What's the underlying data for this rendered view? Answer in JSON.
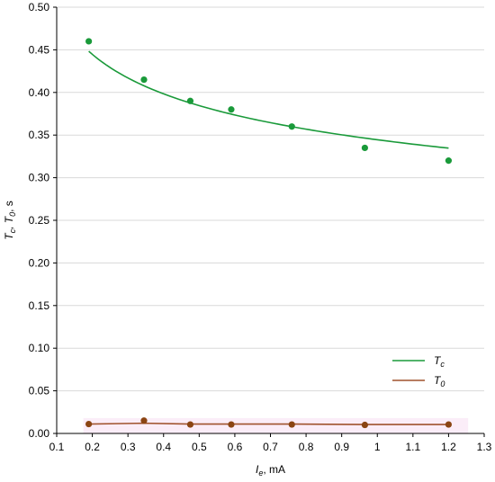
{
  "chart_data": {
    "type": "scatter",
    "x_axis": {
      "label_main": "I",
      "label_sub": "e",
      "label_unit": ", mA",
      "range": [
        0.1,
        1.3
      ],
      "ticks": [
        "0.1",
        "0.2",
        "0.3",
        "0.4",
        "0.5",
        "0.6",
        "0.7",
        "0.8",
        "0.9",
        "1",
        "1.1",
        "1.2",
        "1.3"
      ],
      "tick_values": [
        0.1,
        0.2,
        0.3,
        0.4,
        0.5,
        0.6,
        0.7,
        0.8,
        0.9,
        1.0,
        1.1,
        1.2,
        1.3
      ]
    },
    "y_axis": {
      "label_parts": [
        "T",
        "c",
        ", T",
        "0",
        ", s"
      ],
      "range": [
        0.0,
        0.5
      ],
      "ticks": [
        "0.00",
        "0.05",
        "0.10",
        "0.15",
        "0.20",
        "0.25",
        "0.30",
        "0.35",
        "0.40",
        "0.45",
        "0.50"
      ],
      "tick_values": [
        0.0,
        0.05,
        0.1,
        0.15,
        0.2,
        0.25,
        0.3,
        0.35,
        0.4,
        0.45,
        0.5
      ]
    },
    "grid": "horizontal",
    "legend_position": "bottom-right",
    "series": [
      {
        "name_main": "T",
        "name_sub": "c",
        "color": "#1a9a3a",
        "marker_color": "#1a9a3a",
        "x": [
          0.19,
          0.345,
          0.475,
          0.59,
          0.76,
          0.965,
          1.2
        ],
        "y": [
          0.46,
          0.415,
          0.39,
          0.38,
          0.36,
          0.335,
          0.32
        ],
        "fit_curve": {
          "type": "power",
          "a": 0.3445,
          "b": -0.1586,
          "x_range": [
            0.19,
            1.2
          ]
        }
      },
      {
        "name_main": "T",
        "name_sub": "0",
        "color": "#a0522d",
        "marker_color": "#8b4513",
        "x": [
          0.19,
          0.345,
          0.475,
          0.59,
          0.76,
          0.965,
          1.2
        ],
        "y": [
          0.011,
          0.015,
          0.0105,
          0.0105,
          0.0105,
          0.01,
          0.0105
        ],
        "line": [
          [
            0.19,
            0.011
          ],
          [
            0.345,
            0.012
          ],
          [
            0.475,
            0.011
          ],
          [
            0.59,
            0.011
          ],
          [
            0.76,
            0.011
          ],
          [
            0.965,
            0.0105
          ],
          [
            1.2,
            0.0105
          ]
        ]
      }
    ]
  },
  "colors": {
    "grid": "#d9d9d9",
    "axis": "#000000",
    "highlight": "#f7d7ef"
  }
}
